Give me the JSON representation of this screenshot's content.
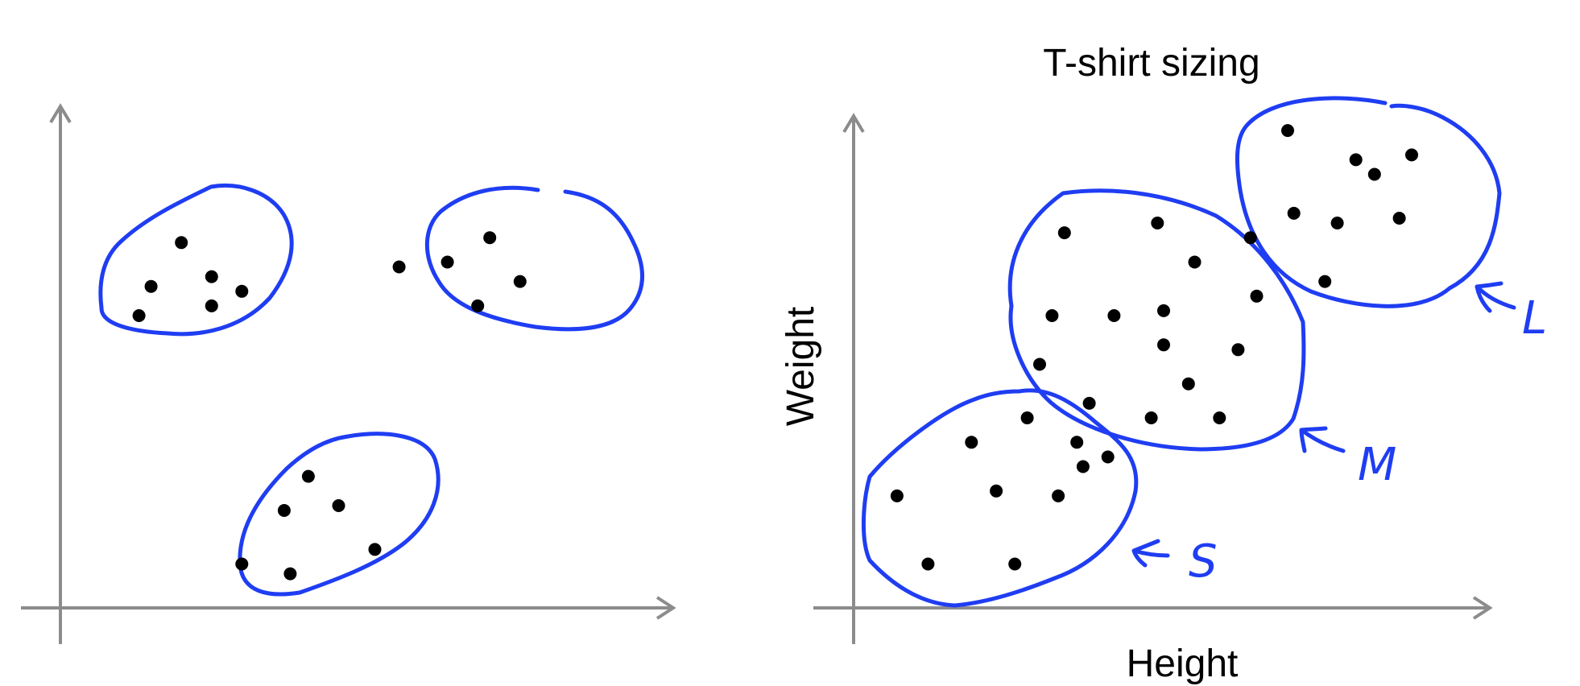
{
  "colors": {
    "axis": "#8c8c8c",
    "points": "#000000",
    "cluster_outline": "#1f3df2",
    "annotation": "#1f3df2"
  },
  "icons": {
    "axis_arrow": "arrowhead",
    "cluster_arrow": "hand-drawn-left-arrow"
  },
  "chart_data": [
    {
      "type": "scatter",
      "title": "",
      "xlabel": "",
      "ylabel": "",
      "xlim": [
        0,
        100
      ],
      "ylim": [
        0,
        100
      ],
      "grid": false,
      "legend": "none",
      "clusters": [
        {
          "outlined": true,
          "x": [
            20,
            15,
            25,
            13,
            25,
            30
          ],
          "y": [
            75,
            66,
            68,
            60,
            62,
            65
          ]
        },
        {
          "outlined": true,
          "x": [
            71,
            64,
            56,
            76,
            69
          ],
          "y": [
            76,
            71,
            70,
            67,
            62
          ]
        },
        {
          "outlined": true,
          "x": [
            41,
            37,
            46,
            30,
            52,
            38
          ],
          "y": [
            27,
            20,
            21,
            9,
            12,
            7
          ]
        }
      ]
    },
    {
      "type": "scatter",
      "title": "T-shirt sizing",
      "xlabel": "Height",
      "ylabel": "Weight",
      "xlim": [
        0,
        100
      ],
      "ylim": [
        0,
        100
      ],
      "grid": false,
      "legend": "none",
      "clusters": [
        {
          "label": "L",
          "x": [
            70,
            81,
            90,
            84,
            71,
            78,
            88,
            64,
            76
          ],
          "y": [
            98,
            92,
            93,
            89,
            81,
            79,
            80,
            76,
            67
          ]
        },
        {
          "label": "M",
          "x": [
            34,
            49,
            55,
            32,
            42,
            50,
            62,
            30,
            50,
            54,
            38,
            48,
            59,
            65
          ],
          "y": [
            77,
            79,
            71,
            60,
            60,
            61,
            53,
            50,
            54,
            46,
            42,
            39,
            39,
            64
          ]
        },
        {
          "label": "S",
          "x": [
            28,
            19,
            36,
            37,
            41,
            7,
            23,
            33,
            12,
            26
          ],
          "y": [
            39,
            34,
            34,
            29,
            31,
            23,
            24,
            23,
            9,
            9
          ]
        }
      ]
    }
  ]
}
